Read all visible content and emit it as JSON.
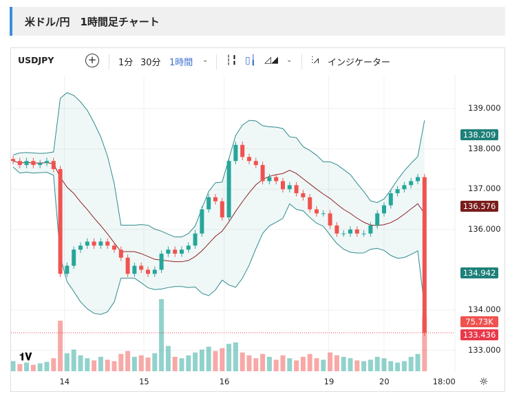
{
  "header": {
    "title": "米ドル/円　1時間足チャート"
  },
  "toolbar": {
    "symbol": "USDJPY",
    "intervals": [
      "1分",
      "30分",
      "1時間"
    ],
    "active_interval": "1時間",
    "indicators_label": "インジケーター"
  },
  "colors": {
    "up": "#26a69a",
    "down": "#ef5350",
    "band": "#2e8b8b",
    "ma": "#8b2222",
    "accent": "#3b6fd0"
  },
  "chart_data": {
    "type": "candlestick",
    "price_ticks": [
      "139.000",
      "138.000",
      "137.000",
      "136.000",
      "134.000",
      "133.000"
    ],
    "price_tick_values": [
      139,
      138,
      137,
      136,
      134,
      133
    ],
    "ylim": [
      132.5,
      140
    ],
    "time_labels": [
      "14",
      "15",
      "16",
      "19",
      "20",
      "18:00"
    ],
    "time_label_index": [
      7.6,
      19.4,
      31.3,
      46.8,
      55,
      64
    ],
    "closes": [
      137.7,
      137.6,
      137.7,
      137.6,
      137.65,
      137.7,
      137.5,
      134.9,
      135.1,
      135.5,
      135.6,
      135.7,
      135.6,
      135.7,
      135.6,
      135.5,
      135.3,
      134.9,
      135.1,
      135.0,
      134.9,
      135.0,
      135.4,
      135.5,
      135.4,
      135.5,
      135.6,
      135.9,
      136.5,
      136.8,
      136.7,
      136.3,
      137.7,
      138.1,
      137.8,
      137.7,
      137.6,
      137.2,
      137.3,
      137.2,
      137.0,
      137.1,
      136.9,
      136.8,
      136.5,
      136.4,
      136.4,
      136.1,
      135.9,
      135.9,
      136.0,
      135.9,
      135.9,
      136.1,
      136.4,
      136.6,
      136.9,
      137.0,
      137.1,
      137.2,
      137.3,
      133.436
    ],
    "volumes_k": [
      14,
      10,
      12,
      9,
      11,
      13,
      18,
      70,
      25,
      30,
      22,
      18,
      15,
      20,
      16,
      14,
      24,
      28,
      20,
      22,
      19,
      25,
      100,
      35,
      20,
      18,
      22,
      26,
      30,
      34,
      28,
      32,
      38,
      40,
      26,
      22,
      18,
      24,
      20,
      16,
      22,
      18,
      15,
      20,
      24,
      18,
      16,
      26,
      22,
      20,
      18,
      15,
      14,
      16,
      20,
      18,
      14,
      12,
      14,
      20,
      24,
      75.73
    ],
    "bollinger": {
      "upper_label": "138.209",
      "lower_label": "134.942",
      "middle_label": "136.576"
    },
    "last_price": "133.436",
    "last_volume": "75.73K"
  }
}
